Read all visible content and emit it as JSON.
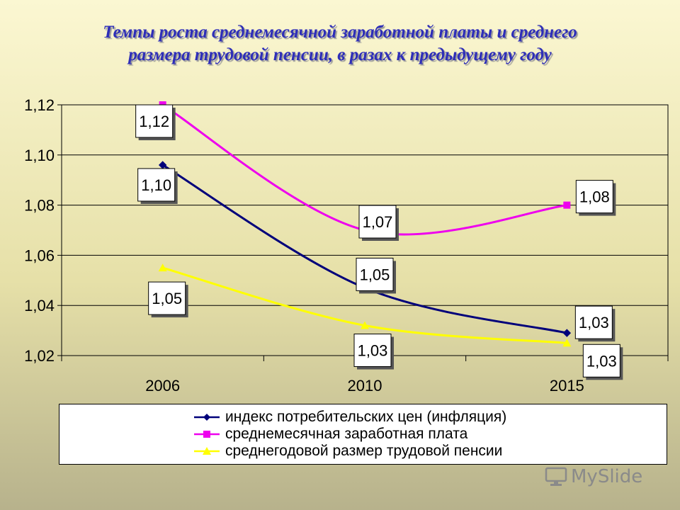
{
  "title_lines": [
    "Темпы роста среднемесячной заработной платы и среднего",
    "размера трудовой пенсии, в разах к предыдущему году"
  ],
  "watermark": "MySlide",
  "chart_data": {
    "type": "line",
    "x": [
      "2006",
      "2010",
      "2015"
    ],
    "ylim": [
      1.02,
      1.12
    ],
    "yticks": [
      "1,02",
      "1,04",
      "1,06",
      "1,08",
      "1,10",
      "1,12"
    ],
    "grid": true,
    "legend_position": "bottom",
    "series": [
      {
        "name": "индекс потребительских цен (инфляция)",
        "values": [
          1.096,
          1.047,
          1.029
        ],
        "labels": [
          "1,10",
          "1,05",
          "1,03"
        ],
        "color": "#00007a",
        "marker": "diamond"
      },
      {
        "name": "среднемесячная заработная плата",
        "values": [
          1.12,
          1.07,
          1.08
        ],
        "labels": [
          "1,12",
          "1,07",
          "1,08"
        ],
        "color": "#ee00ee",
        "marker": "square"
      },
      {
        "name": "среднегодовой размер трудовой пенсии",
        "values": [
          1.055,
          1.032,
          1.025
        ],
        "labels": [
          "1,05",
          "1,03",
          "1,03"
        ],
        "color": "#ffff00",
        "marker": "triangle"
      }
    ]
  }
}
